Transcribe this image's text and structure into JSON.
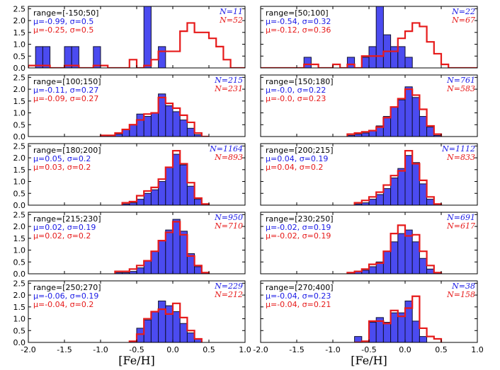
{
  "chart_data": {
    "type": "histogram-grid",
    "bin_width": 0.1,
    "xlim": [
      -2.0,
      1.0
    ],
    "ylim": [
      0,
      2.6
    ],
    "xticks": [
      "-2.0",
      "-1.5",
      "-1.0",
      "-0.5",
      "0.0",
      "0.5",
      "1.0"
    ],
    "yticks": [
      "0.0",
      "0.5",
      "1.0",
      "1.5",
      "2.0",
      "2.5"
    ],
    "xlabel": "[Fe/H]",
    "series_colors": {
      "filled": "#4b4bf0",
      "step": "#e61a1a"
    },
    "panels": [
      {
        "range": "range=[-150;50]",
        "blue_stats": "μ=-0.99, σ=0.5",
        "red_stats": "μ=-0.25, σ=0.5",
        "n_blue": "N=11",
        "n_red": "N=52",
        "blue_bins": {
          "start": -2.0,
          "values": [
            0,
            0.9,
            0.9,
            0,
            0,
            0.9,
            0.9,
            0,
            0,
            0.9,
            0,
            0,
            0,
            0,
            0,
            0,
            2.7,
            0,
            0.9,
            0
          ]
        },
        "red_bins": {
          "start": -2.0,
          "values": [
            0.1,
            0.1,
            0.1,
            0,
            0,
            0.1,
            0.1,
            0,
            0,
            0.1,
            0.1,
            0,
            0,
            0,
            0.35,
            0,
            0.1,
            0.35,
            0.7,
            0.7,
            0.7,
            1.55,
            1.9,
            1.5,
            1.5,
            1.25,
            0.9,
            0.35,
            0,
            0,
            0
          ]
        }
      },
      {
        "range": "range=[50;100]",
        "blue_stats": "μ=-0.54, σ=0.32",
        "red_stats": "μ=-0.12, σ=0.36",
        "n_blue": "N=22",
        "n_red": "N=67",
        "blue_bins": {
          "start": -2.0,
          "values": [
            0,
            0,
            0,
            0,
            0,
            0,
            0.45,
            0,
            0,
            0,
            0,
            0,
            0.45,
            0,
            0.45,
            0.9,
            2.7,
            1.4,
            0.9,
            0.9,
            0.45,
            0
          ]
        },
        "red_bins": {
          "start": -2.0,
          "values": [
            0,
            0,
            0,
            0,
            0,
            0,
            0.15,
            0.15,
            0,
            0,
            0.15,
            0,
            0.15,
            0,
            0.5,
            0.5,
            0.5,
            0.7,
            0.7,
            1.25,
            1.55,
            1.9,
            1.75,
            1.1,
            0.6,
            0.15,
            0,
            0,
            0,
            0
          ]
        }
      },
      {
        "range": "range=[100;150]",
        "blue_stats": "μ=-0.11, σ=0.27",
        "red_stats": "μ=-0.09, σ=0.27",
        "n_blue": "N=215",
        "n_red": "N=231",
        "blue_bins": {
          "start": -1.0,
          "values": [
            0.05,
            0.05,
            0.1,
            0.3,
            0.5,
            0.95,
            0.85,
            1.0,
            1.8,
            1.3,
            1.05,
            0.7,
            0.35,
            0.08,
            0
          ]
        },
        "red_bins": {
          "start": -1.0,
          "values": [
            0.05,
            0.05,
            0.15,
            0.3,
            0.5,
            0.7,
            0.95,
            1.0,
            1.65,
            1.4,
            1.2,
            0.9,
            0.6,
            0.15,
            0
          ]
        }
      },
      {
        "range": "range=[150;180]",
        "blue_stats": "μ=-0.0, σ=0.22",
        "red_stats": "μ=-0.0, σ=0.23",
        "n_blue": "N=761",
        "n_red": "N=583",
        "blue_bins": {
          "start": -0.8,
          "values": [
            0.05,
            0.1,
            0.15,
            0.25,
            0.45,
            0.85,
            1.25,
            1.55,
            2.1,
            1.65,
            0.85,
            0.4,
            0.05
          ]
        },
        "red_bins": {
          "start": -0.8,
          "values": [
            0.1,
            0.15,
            0.2,
            0.25,
            0.4,
            0.8,
            1.25,
            1.6,
            2.0,
            1.75,
            1.15,
            0.45,
            0.1
          ]
        }
      },
      {
        "range": "range=[180;200]",
        "blue_stats": "μ=0.05, σ=0.2",
        "red_stats": "μ=0.03, σ=0.2",
        "n_blue": "N=1164",
        "n_red": "N=893",
        "blue_bins": {
          "start": -0.7,
          "values": [
            0.05,
            0.1,
            0.25,
            0.5,
            0.65,
            1.0,
            1.6,
            2.15,
            1.7,
            0.8,
            0.25,
            0.05
          ]
        },
        "red_bins": {
          "start": -0.7,
          "values": [
            0.1,
            0.15,
            0.4,
            0.6,
            0.75,
            1.1,
            1.6,
            2.3,
            1.75,
            0.95,
            0.3,
            0.05
          ]
        }
      },
      {
        "range": "range=[200;215]",
        "blue_stats": "μ=0.04, σ=0.19",
        "red_stats": "μ=0.04, σ=0.2",
        "n_blue": "N=1112",
        "n_red": "N=833",
        "blue_bins": {
          "start": -0.7,
          "values": [
            0.05,
            0.1,
            0.25,
            0.45,
            0.7,
            1.15,
            1.55,
            2.1,
            1.8,
            0.9,
            0.25,
            0.05
          ]
        },
        "red_bins": {
          "start": -0.7,
          "values": [
            0.1,
            0.2,
            0.35,
            0.55,
            0.85,
            1.25,
            1.45,
            2.3,
            1.75,
            1.05,
            0.35,
            0.05
          ]
        }
      },
      {
        "range": "range=[215;230]",
        "blue_stats": "μ=0.02, σ=0.19",
        "red_stats": "μ=0.02, σ=0.2",
        "n_blue": "N=950",
        "n_red": "N=710",
        "blue_bins": {
          "start": -0.8,
          "values": [
            0.05,
            0.05,
            0.1,
            0.25,
            0.55,
            0.95,
            1.4,
            1.85,
            2.3,
            1.8,
            0.85,
            0.3,
            0.05
          ]
        },
        "red_bins": {
          "start": -0.8,
          "values": [
            0.1,
            0.1,
            0.2,
            0.35,
            0.55,
            0.95,
            1.4,
            1.75,
            2.2,
            1.65,
            0.75,
            0.35,
            0.05
          ]
        }
      },
      {
        "range": "range=[230;250]",
        "blue_stats": "μ=-0.02, σ=0.19",
        "red_stats": "μ=-0.02, σ=0.19",
        "n_blue": "N=691",
        "n_red": "N=617",
        "blue_bins": {
          "start": -0.8,
          "values": [
            0.05,
            0.1,
            0.15,
            0.3,
            0.5,
            0.95,
            1.35,
            1.7,
            1.85,
            1.35,
            0.65,
            0.2,
            0.05
          ]
        },
        "red_bins": {
          "start": -0.8,
          "values": [
            0.05,
            0.1,
            0.2,
            0.4,
            0.45,
            0.95,
            1.7,
            2.05,
            1.6,
            1.65,
            0.95,
            0.35,
            0.05
          ]
        }
      },
      {
        "range": "range=[250;270]",
        "blue_stats": "μ=-0.06, σ=0.19",
        "red_stats": "μ=-0.04, σ=0.2",
        "n_blue": "N=229",
        "n_red": "N=212",
        "blue_bins": {
          "start": -0.6,
          "values": [
            0.05,
            0.6,
            0.95,
            1.3,
            1.75,
            1.55,
            1.3,
            0.8,
            0.4,
            0.15
          ]
        },
        "red_bins": {
          "start": -0.6,
          "values": [
            0.05,
            0.35,
            1.0,
            1.3,
            1.4,
            1.2,
            1.65,
            1.05,
            0.5,
            0.15
          ]
        }
      },
      {
        "range": "range=[270;400]",
        "blue_stats": "μ=-0.04, σ=0.23",
        "red_stats": "μ=-0.04, σ=0.21",
        "n_blue": "N=38",
        "n_red": "N=158",
        "blue_bins": {
          "start": -0.7,
          "values": [
            0.25,
            0,
            0.85,
            1.05,
            0.85,
            1.25,
            1.25,
            1.75,
            0.9,
            0.25,
            0
          ]
        },
        "red_bins": {
          "start": -0.7,
          "values": [
            0,
            0.05,
            0.9,
            0.9,
            0.8,
            1.35,
            1.1,
            1.45,
            1.95,
            0.6,
            0.25,
            0.15
          ]
        }
      }
    ]
  }
}
